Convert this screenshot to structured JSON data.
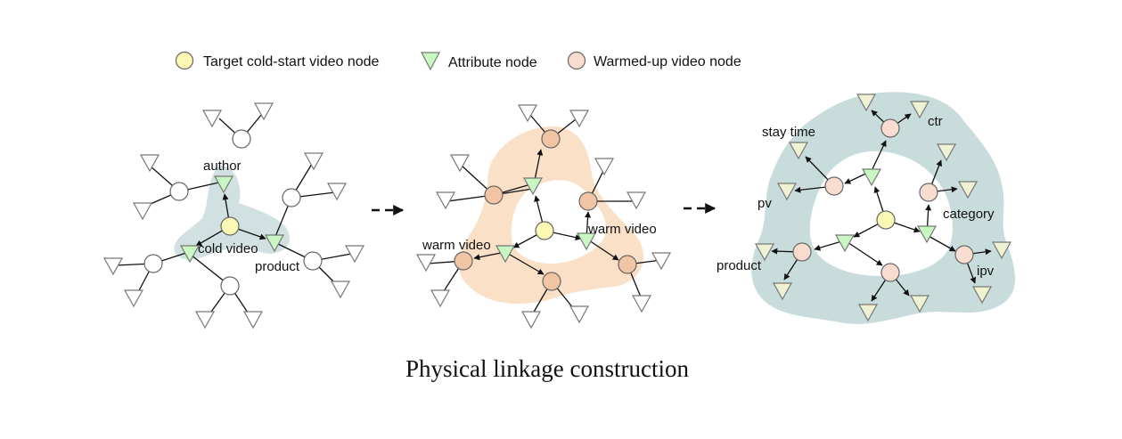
{
  "legend": {
    "items": [
      {
        "shape": "circle",
        "label": "Target cold-start video node",
        "color": "#fbf8b4"
      },
      {
        "shape": "triangle",
        "label": "Attribute node",
        "color": "#c9f7c4"
      },
      {
        "shape": "circle",
        "label": "Warmed-up video node",
        "color": "#f8dccf"
      }
    ]
  },
  "panels": {
    "left": {
      "labels": {
        "author": "author",
        "cold_video": "cold video",
        "product": "product"
      }
    },
    "middle": {
      "labels": {
        "warm_video_1": "warm video",
        "warm_video_2": "warm video"
      }
    },
    "right": {
      "labels": {
        "stay_time": "stay time",
        "ctr": "ctr",
        "pv": "pv",
        "category": "category",
        "product": "product",
        "ipv": "ipv"
      }
    }
  },
  "caption": "Physical linkage construction",
  "colors": {
    "cold_node": "#fbf8b4",
    "attribute_node": "#c9f7c4",
    "warm_node_light": "#f8dccf",
    "warm_node_dark": "#f1c4a3",
    "plain_node": "#ffffff",
    "plain_triangle": "#ffffff",
    "light_triangle": "#eef1d2",
    "blob_blue": "#c9dcdc",
    "blob_orange": "#fbe0c8",
    "edge": "#111111"
  },
  "icons": [
    "arrow-right-dashed-icon"
  ]
}
